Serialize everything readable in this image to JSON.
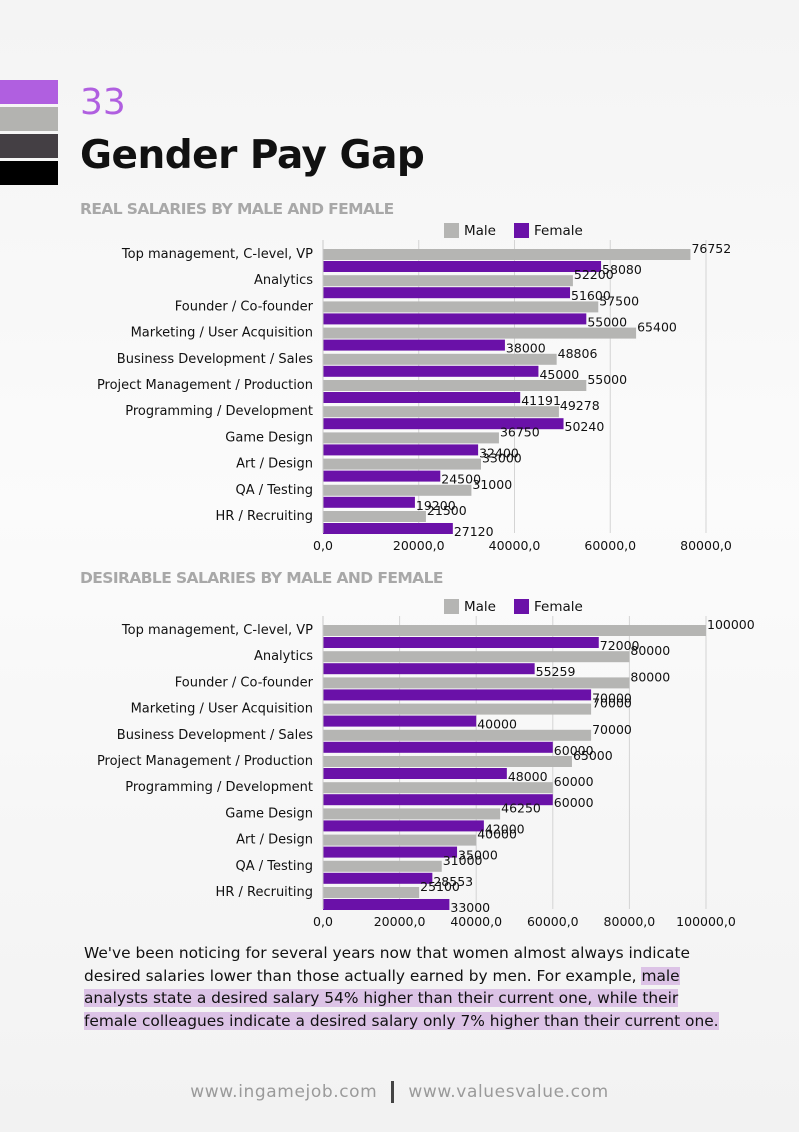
{
  "colors": {
    "accent": "#b05fe0",
    "male": "#b5b5b3",
    "female": "#6a11a8",
    "swatches": [
      "#b05fe0",
      "#b3b3b0",
      "#443f44",
      "#000000"
    ]
  },
  "header": {
    "page_number": "33",
    "title": "Gender Pay Gap"
  },
  "chart_data": [
    {
      "type": "bar",
      "orientation": "horizontal",
      "title": "REAL SALARIES BY MALE AND FEMALE",
      "legend_position": "top-right",
      "grid": true,
      "xlim": [
        0,
        80000
      ],
      "xticks": [
        "0,0",
        "20000,0",
        "40000,0",
        "60000,0",
        "80000,0"
      ],
      "categories": [
        "Top management, C-level, VP",
        "Analytics",
        "Founder / Co-founder",
        "Marketing / User Acquisition",
        "Business Development / Sales",
        "Project Management / Production",
        "Programming / Development",
        "Game Design",
        "Art / Design",
        "QA / Testing",
        "HR / Recruiting"
      ],
      "series": [
        {
          "name": "Male",
          "values": [
            76752,
            52200,
            57500,
            65400,
            48806,
            55000,
            49278,
            36750,
            33000,
            31000,
            21500
          ]
        },
        {
          "name": "Female",
          "values": [
            58080,
            51600,
            55000,
            38000,
            45000,
            41191,
            50240,
            32400,
            24500,
            19200,
            27120
          ]
        }
      ]
    },
    {
      "type": "bar",
      "orientation": "horizontal",
      "title": "DESIRABLE SALARIES BY MALE AND FEMALE",
      "legend_position": "top-right",
      "grid": true,
      "xlim": [
        0,
        100000
      ],
      "xticks": [
        "0,0",
        "20000,0",
        "40000,0",
        "60000,0",
        "80000,0",
        "100000,0"
      ],
      "categories": [
        "Top management, C-level, VP",
        "Analytics",
        "Founder / Co-founder",
        "Marketing / User Acquisition",
        "Business Development / Sales",
        "Project Management / Production",
        "Programming / Development",
        "Game Design",
        "Art / Design",
        "QA / Testing",
        "HR / Recruiting"
      ],
      "series": [
        {
          "name": "Male",
          "values": [
            100000,
            80000,
            80000,
            70000,
            70000,
            65000,
            60000,
            46250,
            40000,
            31000,
            25100
          ]
        },
        {
          "name": "Female",
          "values": [
            72000,
            55259,
            70000,
            40000,
            60000,
            48000,
            60000,
            42000,
            35000,
            28553,
            33000
          ]
        }
      ]
    }
  ],
  "text": {
    "part1": "We've been noticing for several years now that women almost always indicate desired salaries lower than those actually earned by men. For example, ",
    "highlight": "male analysts state a desired salary 54% higher than their current one, while their female colleagues indicate a desired salary only 7% higher than their current one."
  },
  "footer": {
    "left": "www.ingamejob.com",
    "right": "www.valuesvalue.com"
  }
}
